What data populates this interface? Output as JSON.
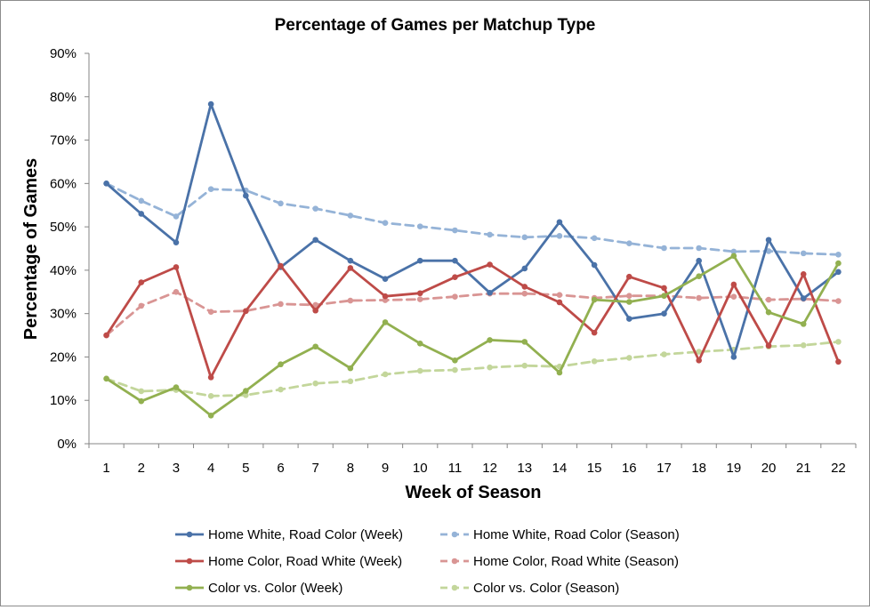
{
  "chart_data": {
    "type": "line",
    "title": "Percentage of Games per Matchup Type",
    "xlabel": "Week of Season",
    "ylabel": "Percentage of Games",
    "categories": [
      "1",
      "2",
      "3",
      "4",
      "5",
      "6",
      "7",
      "8",
      "9",
      "10",
      "11",
      "12",
      "13",
      "14",
      "15",
      "16",
      "17",
      "18",
      "19",
      "20",
      "21",
      "22"
    ],
    "ylim": [
      0,
      90
    ],
    "yticks": [
      "0%",
      "10%",
      "20%",
      "30%",
      "40%",
      "50%",
      "60%",
      "70%",
      "80%",
      "90%"
    ],
    "grid": false,
    "legend_position": "bottom",
    "series": [
      {
        "name": "Home White, Road Color (Week)",
        "color": "#4a72a8",
        "style": "solid",
        "values": [
          60.0,
          53.0,
          46.4,
          78.3,
          57.2,
          40.7,
          47.0,
          42.2,
          38.0,
          42.2,
          42.2,
          34.8,
          40.4,
          51.1,
          41.2,
          28.8,
          30.0,
          42.2,
          20.0,
          47.0,
          33.5,
          39.6
        ]
      },
      {
        "name": "Home White, Road Color (Season)",
        "color": "#95b3d7",
        "style": "dashed",
        "values": [
          60.0,
          56.0,
          52.4,
          58.7,
          58.4,
          55.4,
          54.2,
          52.6,
          50.9,
          50.1,
          49.2,
          48.2,
          47.6,
          47.9,
          47.4,
          46.2,
          45.1,
          45.1,
          44.3,
          44.4,
          43.9,
          43.6
        ]
      },
      {
        "name": "Home Color, Road White (Week)",
        "color": "#be4b48",
        "style": "solid",
        "values": [
          25.0,
          37.2,
          40.7,
          15.3,
          30.6,
          41.0,
          30.7,
          40.5,
          34.0,
          34.7,
          38.4,
          41.3,
          36.2,
          32.6,
          25.6,
          38.5,
          35.9,
          19.2,
          36.7,
          22.6,
          39.1,
          18.9
        ]
      },
      {
        "name": "Home Color, Road White (Season)",
        "color": "#d99594",
        "style": "dashed",
        "values": [
          25.0,
          31.8,
          35.0,
          30.4,
          30.6,
          32.2,
          32.0,
          33.0,
          33.1,
          33.3,
          33.9,
          34.6,
          34.6,
          34.3,
          33.6,
          34.1,
          34.1,
          33.6,
          33.9,
          33.2,
          33.4,
          32.9
        ]
      },
      {
        "name": "Color vs. Color (Week)",
        "color": "#92b050",
        "style": "solid",
        "values": [
          15.0,
          9.8,
          13.0,
          6.5,
          12.2,
          18.3,
          22.4,
          17.4,
          28.0,
          23.1,
          19.2,
          23.9,
          23.5,
          16.4,
          33.2,
          32.7,
          34.1,
          38.6,
          43.3,
          30.3,
          27.6,
          41.6
        ]
      },
      {
        "name": "Color vs. Color (Season)",
        "color": "#c3d69b",
        "style": "dashed",
        "values": [
          15.0,
          12.1,
          12.4,
          11.0,
          11.2,
          12.5,
          13.9,
          14.4,
          16.0,
          16.8,
          17.0,
          17.6,
          18.0,
          17.8,
          19.0,
          19.8,
          20.6,
          21.2,
          21.7,
          22.4,
          22.7,
          23.5
        ]
      }
    ]
  }
}
